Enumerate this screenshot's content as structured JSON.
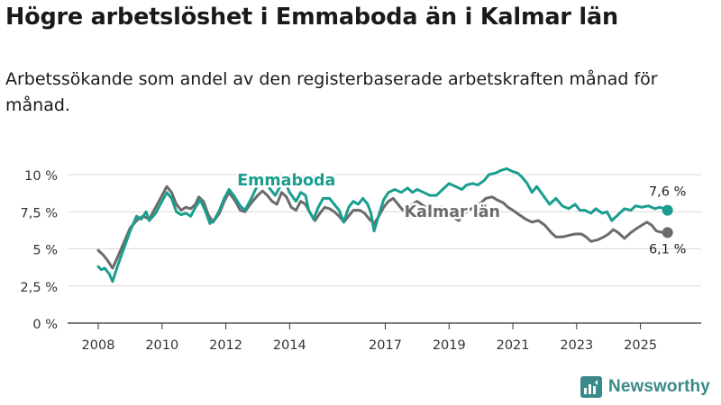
{
  "title": "Högre arbetslöshet i Emmaboda än i Kalmar län",
  "subtitle": "Arbetssökande som andel av den registerbaserade arbetskraften månad för månad.",
  "brand": "Newsworthy",
  "colors": {
    "emmaboda": "#1a9e8f",
    "kalmar": "#6b6b6b",
    "grid": "#d9d9d9",
    "axis": "#333333",
    "brand": "#3a8a8a"
  },
  "chart_data": {
    "type": "line",
    "title": "Högre arbetslöshet i Emmaboda än i Kalmar län",
    "xlabel": "",
    "ylabel": "",
    "xlim": [
      2008,
      2026
    ],
    "ylim": [
      0,
      10
    ],
    "grid": true,
    "y_ticks": [
      0,
      2.5,
      5,
      7.5,
      10
    ],
    "y_tick_labels": [
      "0 %",
      "2,5 %",
      "5 %",
      "7,5 %",
      "10 %"
    ],
    "x_ticks": [
      2008,
      2010,
      2012,
      2014,
      2017,
      2019,
      2021,
      2023,
      2025
    ],
    "x_tick_labels": [
      "2008",
      "2010",
      "2012",
      "2014",
      "2017",
      "2019",
      "2021",
      "2023",
      "2025"
    ],
    "series": [
      {
        "name": "Emmaboda",
        "end_label": "7,6 %",
        "points": [
          [
            2008.0,
            3.8
          ],
          [
            2008.1,
            3.6
          ],
          [
            2008.2,
            3.7
          ],
          [
            2008.35,
            3.3
          ],
          [
            2008.45,
            2.8
          ],
          [
            2008.6,
            3.8
          ],
          [
            2008.8,
            5.0
          ],
          [
            2009.0,
            6.2
          ],
          [
            2009.2,
            7.2
          ],
          [
            2009.35,
            7.0
          ],
          [
            2009.5,
            7.5
          ],
          [
            2009.6,
            6.9
          ],
          [
            2009.8,
            7.4
          ],
          [
            2010.0,
            8.2
          ],
          [
            2010.15,
            8.8
          ],
          [
            2010.3,
            8.4
          ],
          [
            2010.45,
            7.5
          ],
          [
            2010.6,
            7.3
          ],
          [
            2010.75,
            7.4
          ],
          [
            2010.9,
            7.2
          ],
          [
            2011.05,
            7.8
          ],
          [
            2011.2,
            8.3
          ],
          [
            2011.35,
            7.6
          ],
          [
            2011.5,
            6.7
          ],
          [
            2011.65,
            7.0
          ],
          [
            2011.8,
            7.6
          ],
          [
            2011.95,
            8.4
          ],
          [
            2012.1,
            9.0
          ],
          [
            2012.25,
            8.6
          ],
          [
            2012.45,
            7.9
          ],
          [
            2012.6,
            7.6
          ],
          [
            2012.8,
            8.4
          ],
          [
            2013.0,
            9.3
          ],
          [
            2013.2,
            9.6
          ],
          [
            2013.4,
            9.0
          ],
          [
            2013.55,
            8.6
          ],
          [
            2013.75,
            9.4
          ],
          [
            2013.9,
            9.3
          ],
          [
            2014.0,
            8.8
          ],
          [
            2014.2,
            8.2
          ],
          [
            2014.35,
            8.8
          ],
          [
            2014.5,
            8.6
          ],
          [
            2014.6,
            7.6
          ],
          [
            2014.75,
            7.0
          ],
          [
            2014.9,
            7.8
          ],
          [
            2015.05,
            8.4
          ],
          [
            2015.25,
            8.4
          ],
          [
            2015.4,
            8.0
          ],
          [
            2015.55,
            7.6
          ],
          [
            2015.7,
            6.8
          ],
          [
            2015.85,
            7.8
          ],
          [
            2016.0,
            8.2
          ],
          [
            2016.15,
            8.0
          ],
          [
            2016.3,
            8.4
          ],
          [
            2016.45,
            8.0
          ],
          [
            2016.55,
            7.4
          ],
          [
            2016.65,
            6.2
          ],
          [
            2016.8,
            7.3
          ],
          [
            2016.95,
            8.3
          ],
          [
            2017.1,
            8.8
          ],
          [
            2017.3,
            9.0
          ],
          [
            2017.5,
            8.8
          ],
          [
            2017.7,
            9.1
          ],
          [
            2017.85,
            8.8
          ],
          [
            2018.0,
            9.0
          ],
          [
            2018.2,
            8.8
          ],
          [
            2018.4,
            8.6
          ],
          [
            2018.6,
            8.6
          ],
          [
            2018.8,
            9.0
          ],
          [
            2019.0,
            9.4
          ],
          [
            2019.2,
            9.2
          ],
          [
            2019.4,
            9.0
          ],
          [
            2019.55,
            9.3
          ],
          [
            2019.75,
            9.4
          ],
          [
            2019.9,
            9.3
          ],
          [
            2020.1,
            9.6
          ],
          [
            2020.25,
            10.0
          ],
          [
            2020.45,
            10.1
          ],
          [
            2020.65,
            10.3
          ],
          [
            2020.8,
            10.4
          ],
          [
            2021.0,
            10.2
          ],
          [
            2021.15,
            10.1
          ],
          [
            2021.3,
            9.8
          ],
          [
            2021.45,
            9.4
          ],
          [
            2021.6,
            8.8
          ],
          [
            2021.75,
            9.2
          ],
          [
            2021.95,
            8.6
          ],
          [
            2022.15,
            8.0
          ],
          [
            2022.35,
            8.4
          ],
          [
            2022.55,
            7.9
          ],
          [
            2022.75,
            7.7
          ],
          [
            2022.95,
            8.0
          ],
          [
            2023.1,
            7.6
          ],
          [
            2023.25,
            7.6
          ],
          [
            2023.45,
            7.4
          ],
          [
            2023.6,
            7.7
          ],
          [
            2023.8,
            7.4
          ],
          [
            2023.95,
            7.5
          ],
          [
            2024.1,
            6.9
          ],
          [
            2024.3,
            7.3
          ],
          [
            2024.5,
            7.7
          ],
          [
            2024.7,
            7.6
          ],
          [
            2024.85,
            7.9
          ],
          [
            2025.05,
            7.8
          ],
          [
            2025.25,
            7.9
          ],
          [
            2025.45,
            7.7
          ],
          [
            2025.6,
            7.8
          ],
          [
            2025.75,
            7.7
          ],
          [
            2025.85,
            7.6
          ]
        ]
      },
      {
        "name": "Kalmar län",
        "end_label": "6,1 %",
        "points": [
          [
            2008.0,
            4.9
          ],
          [
            2008.15,
            4.6
          ],
          [
            2008.3,
            4.2
          ],
          [
            2008.45,
            3.7
          ],
          [
            2008.6,
            4.4
          ],
          [
            2008.8,
            5.4
          ],
          [
            2009.0,
            6.4
          ],
          [
            2009.2,
            6.9
          ],
          [
            2009.4,
            7.2
          ],
          [
            2009.6,
            7.0
          ],
          [
            2009.8,
            7.8
          ],
          [
            2010.0,
            8.6
          ],
          [
            2010.15,
            9.2
          ],
          [
            2010.3,
            8.8
          ],
          [
            2010.45,
            8.0
          ],
          [
            2010.6,
            7.6
          ],
          [
            2010.75,
            7.8
          ],
          [
            2010.9,
            7.7
          ],
          [
            2011.05,
            8.0
          ],
          [
            2011.15,
            8.5
          ],
          [
            2011.3,
            8.2
          ],
          [
            2011.45,
            7.3
          ],
          [
            2011.6,
            6.8
          ],
          [
            2011.8,
            7.4
          ],
          [
            2011.95,
            8.2
          ],
          [
            2012.1,
            8.8
          ],
          [
            2012.3,
            8.2
          ],
          [
            2012.45,
            7.6
          ],
          [
            2012.6,
            7.5
          ],
          [
            2012.8,
            8.1
          ],
          [
            2013.0,
            8.6
          ],
          [
            2013.15,
            8.9
          ],
          [
            2013.3,
            8.6
          ],
          [
            2013.45,
            8.2
          ],
          [
            2013.6,
            8.0
          ],
          [
            2013.75,
            8.8
          ],
          [
            2013.9,
            8.5
          ],
          [
            2014.05,
            7.8
          ],
          [
            2014.2,
            7.6
          ],
          [
            2014.35,
            8.2
          ],
          [
            2014.5,
            8.0
          ],
          [
            2014.65,
            7.4
          ],
          [
            2014.8,
            6.9
          ],
          [
            2014.95,
            7.4
          ],
          [
            2015.1,
            7.8
          ],
          [
            2015.25,
            7.7
          ],
          [
            2015.4,
            7.5
          ],
          [
            2015.55,
            7.2
          ],
          [
            2015.7,
            6.8
          ],
          [
            2015.85,
            7.2
          ],
          [
            2016.0,
            7.6
          ],
          [
            2016.2,
            7.6
          ],
          [
            2016.35,
            7.4
          ],
          [
            2016.5,
            7.0
          ],
          [
            2016.65,
            6.7
          ],
          [
            2016.8,
            7.2
          ],
          [
            2016.95,
            7.8
          ],
          [
            2017.1,
            8.2
          ],
          [
            2017.25,
            8.4
          ],
          [
            2017.4,
            8.0
          ],
          [
            2017.55,
            7.6
          ],
          [
            2017.7,
            7.9
          ],
          [
            2017.85,
            8.0
          ],
          [
            2018.0,
            8.2
          ],
          [
            2018.2,
            7.9
          ],
          [
            2018.4,
            7.6
          ],
          [
            2018.6,
            7.8
          ],
          [
            2018.8,
            7.8
          ],
          [
            2019.0,
            7.5
          ],
          [
            2019.15,
            7.1
          ],
          [
            2019.3,
            6.9
          ],
          [
            2019.45,
            7.3
          ],
          [
            2019.6,
            7.6
          ],
          [
            2019.8,
            7.8
          ],
          [
            2020.0,
            8.1
          ],
          [
            2020.15,
            8.4
          ],
          [
            2020.35,
            8.5
          ],
          [
            2020.5,
            8.3
          ],
          [
            2020.7,
            8.1
          ],
          [
            2020.85,
            7.8
          ],
          [
            2021.0,
            7.6
          ],
          [
            2021.2,
            7.3
          ],
          [
            2021.4,
            7.0
          ],
          [
            2021.6,
            6.8
          ],
          [
            2021.8,
            6.9
          ],
          [
            2022.0,
            6.6
          ],
          [
            2022.2,
            6.1
          ],
          [
            2022.35,
            5.8
          ],
          [
            2022.55,
            5.8
          ],
          [
            2022.75,
            5.9
          ],
          [
            2022.95,
            6.0
          ],
          [
            2023.15,
            6.0
          ],
          [
            2023.3,
            5.8
          ],
          [
            2023.45,
            5.5
          ],
          [
            2023.65,
            5.6
          ],
          [
            2023.85,
            5.8
          ],
          [
            2024.0,
            6.0
          ],
          [
            2024.15,
            6.3
          ],
          [
            2024.3,
            6.1
          ],
          [
            2024.5,
            5.7
          ],
          [
            2024.7,
            6.1
          ],
          [
            2024.9,
            6.4
          ],
          [
            2025.05,
            6.6
          ],
          [
            2025.2,
            6.8
          ],
          [
            2025.35,
            6.6
          ],
          [
            2025.5,
            6.2
          ],
          [
            2025.7,
            6.1
          ],
          [
            2025.85,
            6.1
          ]
        ]
      }
    ]
  }
}
